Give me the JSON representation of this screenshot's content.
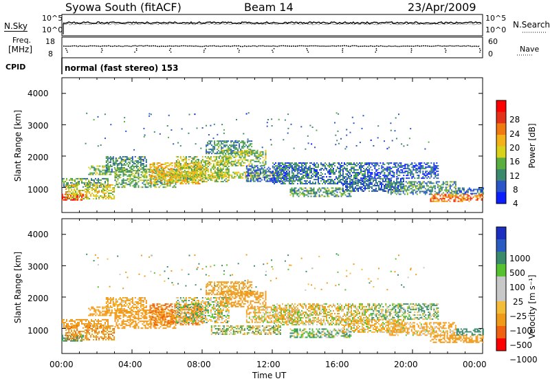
{
  "header": {
    "station": "Syowa South (fitACF)",
    "beam": "Beam 14",
    "date": "23/Apr/2009"
  },
  "noise_panel": {
    "left_label": "N.Sky",
    "left_ticks": [
      "10^5",
      "10^0"
    ],
    "right_label": "N.Search",
    "right_ticks": [
      "10^5",
      "10^0"
    ]
  },
  "freq_panel": {
    "left_label_line1": "Freq.",
    "left_label_line2": "[MHz]",
    "left_ticks": [
      "18",
      "8"
    ],
    "right_label": "Nave",
    "right_ticks": [
      "60",
      "0"
    ]
  },
  "cpid": {
    "label": "CPID",
    "value": "normal (fast stereo) 153"
  },
  "x_axis": {
    "ticks": [
      "00:00",
      "04:00",
      "08:00",
      "12:00",
      "16:00",
      "20:00",
      "00:00"
    ],
    "label": "Time UT"
  },
  "colors": {
    "power_scale": [
      "#0a1eff",
      "#2a55c8",
      "#3b8a6e",
      "#5aae3f",
      "#d9d21a",
      "#f3b21a",
      "#f07a10",
      "#e4321a",
      "#ff0000"
    ],
    "velocity_scale": [
      "#ff0000",
      "#f0620f",
      "#f09a1a",
      "#f3bd3a",
      "#c8c8c8",
      "#c8c8c8",
      "#56c22f",
      "#3a8a6c",
      "#2a5bc0",
      "#1a2fbf"
    ]
  },
  "chart_data": [
    {
      "type": "heatmap",
      "title": "",
      "xlabel": "",
      "ylabel": "Slant Range [km]",
      "xlim_hours": [
        0,
        24
      ],
      "ylim": [
        200,
        4500
      ],
      "y_ticks": [
        "4000",
        "3000",
        "2000",
        "1000"
      ],
      "colorbar": {
        "label": "Power [dB]",
        "ticks": [
          "28",
          "24",
          "20",
          "16",
          "12",
          "8",
          "4"
        ],
        "range": [
          0,
          30
        ]
      },
      "regions": [
        {
          "t0": 0.0,
          "t1": 2.6,
          "r0": 1000,
          "r1": 1300,
          "v": 10
        },
        {
          "t0": 0.0,
          "t1": 1.2,
          "r0": 600,
          "r1": 800,
          "v": 27
        },
        {
          "t0": 0.2,
          "t1": 3.0,
          "r0": 650,
          "r1": 1100,
          "v": 16
        },
        {
          "t0": 1.5,
          "t1": 2.8,
          "r0": 1400,
          "r1": 1700,
          "v": 12
        },
        {
          "t0": 2.5,
          "t1": 4.8,
          "r0": 1500,
          "r1": 2000,
          "v": 9
        },
        {
          "t0": 3.0,
          "t1": 6.5,
          "r0": 1000,
          "r1": 1600,
          "v": 11
        },
        {
          "t0": 5.0,
          "t1": 8.0,
          "r0": 1100,
          "r1": 1800,
          "v": 18
        },
        {
          "t0": 6.5,
          "t1": 9.5,
          "r0": 1200,
          "r1": 2000,
          "v": 14
        },
        {
          "t0": 8.2,
          "t1": 10.8,
          "r0": 2100,
          "r1": 2500,
          "v": 9
        },
        {
          "t0": 9.0,
          "t1": 11.6,
          "r0": 1700,
          "r1": 2200,
          "v": 13
        },
        {
          "t0": 5.5,
          "t1": 12.5,
          "r0": 1300,
          "r1": 1500,
          "v": 15
        },
        {
          "t0": 10.5,
          "t1": 13.5,
          "r0": 1200,
          "r1": 1700,
          "v": 6
        },
        {
          "t0": 12.0,
          "t1": 17.5,
          "r0": 1100,
          "r1": 1800,
          "v": 7
        },
        {
          "t0": 13.0,
          "t1": 16.5,
          "r0": 700,
          "r1": 1000,
          "v": 10
        },
        {
          "t0": 16.0,
          "t1": 19.5,
          "r0": 900,
          "r1": 1300,
          "v": 6
        },
        {
          "t0": 17.5,
          "t1": 21.5,
          "r0": 1300,
          "r1": 1800,
          "v": 5
        },
        {
          "t0": 18.5,
          "t1": 22.5,
          "r0": 800,
          "r1": 1200,
          "v": 9
        },
        {
          "t0": 21.0,
          "t1": 24.0,
          "r0": 550,
          "r1": 800,
          "v": 22
        },
        {
          "t0": 22.5,
          "t1": 24.0,
          "r0": 800,
          "r1": 1000,
          "v": 7
        }
      ]
    },
    {
      "type": "heatmap",
      "title": "",
      "xlabel": "Time UT",
      "ylabel": "Slant Range [km]",
      "xlim_hours": [
        0,
        24
      ],
      "ylim": [
        200,
        4500
      ],
      "y_ticks": [
        "4000",
        "3000",
        "2000",
        "1000"
      ],
      "colorbar": {
        "label": "Velocity [m s⁻¹]",
        "ticks": [
          "1000",
          "500",
          "100",
          "25",
          "−25",
          "−100",
          "−500",
          "−1000"
        ]
      },
      "regions": [
        {
          "t0": 0.0,
          "t1": 2.6,
          "r0": 1000,
          "r1": 1300,
          "v": -300
        },
        {
          "t0": 0.0,
          "t1": 1.2,
          "r0": 600,
          "r1": 800,
          "v": 200
        },
        {
          "t0": 0.2,
          "t1": 3.0,
          "r0": 650,
          "r1": 1100,
          "v": -400
        },
        {
          "t0": 1.5,
          "t1": 2.8,
          "r0": 1400,
          "r1": 1700,
          "v": -200
        },
        {
          "t0": 2.5,
          "t1": 4.8,
          "r0": 1500,
          "r1": 2000,
          "v": -150
        },
        {
          "t0": 3.0,
          "t1": 6.5,
          "r0": 1000,
          "r1": 1600,
          "v": -350
        },
        {
          "t0": 5.0,
          "t1": 8.0,
          "r0": 1100,
          "r1": 1800,
          "v": -500
        },
        {
          "t0": 6.5,
          "t1": 9.5,
          "r0": 1200,
          "r1": 2000,
          "v": 0
        },
        {
          "t0": 8.2,
          "t1": 10.8,
          "r0": 2100,
          "r1": 2500,
          "v": -200
        },
        {
          "t0": 9.0,
          "t1": 11.6,
          "r0": 1700,
          "r1": 2200,
          "v": -250
        },
        {
          "t0": 8.5,
          "t1": 12.5,
          "r0": 800,
          "r1": 1100,
          "v": 0
        },
        {
          "t0": 10.5,
          "t1": 13.5,
          "r0": 1200,
          "r1": 1700,
          "v": -80
        },
        {
          "t0": 12.0,
          "t1": 17.5,
          "r0": 1100,
          "r1": 1800,
          "v": -60
        },
        {
          "t0": 13.0,
          "t1": 16.5,
          "r0": 700,
          "r1": 1000,
          "v": 80
        },
        {
          "t0": 16.0,
          "t1": 19.5,
          "r0": 900,
          "r1": 1300,
          "v": -90
        },
        {
          "t0": 17.5,
          "t1": 21.5,
          "r0": 1300,
          "r1": 1800,
          "v": 60
        },
        {
          "t0": 18.5,
          "t1": 22.5,
          "r0": 800,
          "r1": 1200,
          "v": -120
        },
        {
          "t0": 21.0,
          "t1": 24.0,
          "r0": 550,
          "r1": 800,
          "v": -300
        },
        {
          "t0": 22.5,
          "t1": 24.0,
          "r0": 800,
          "r1": 1000,
          "v": 300
        }
      ]
    }
  ]
}
